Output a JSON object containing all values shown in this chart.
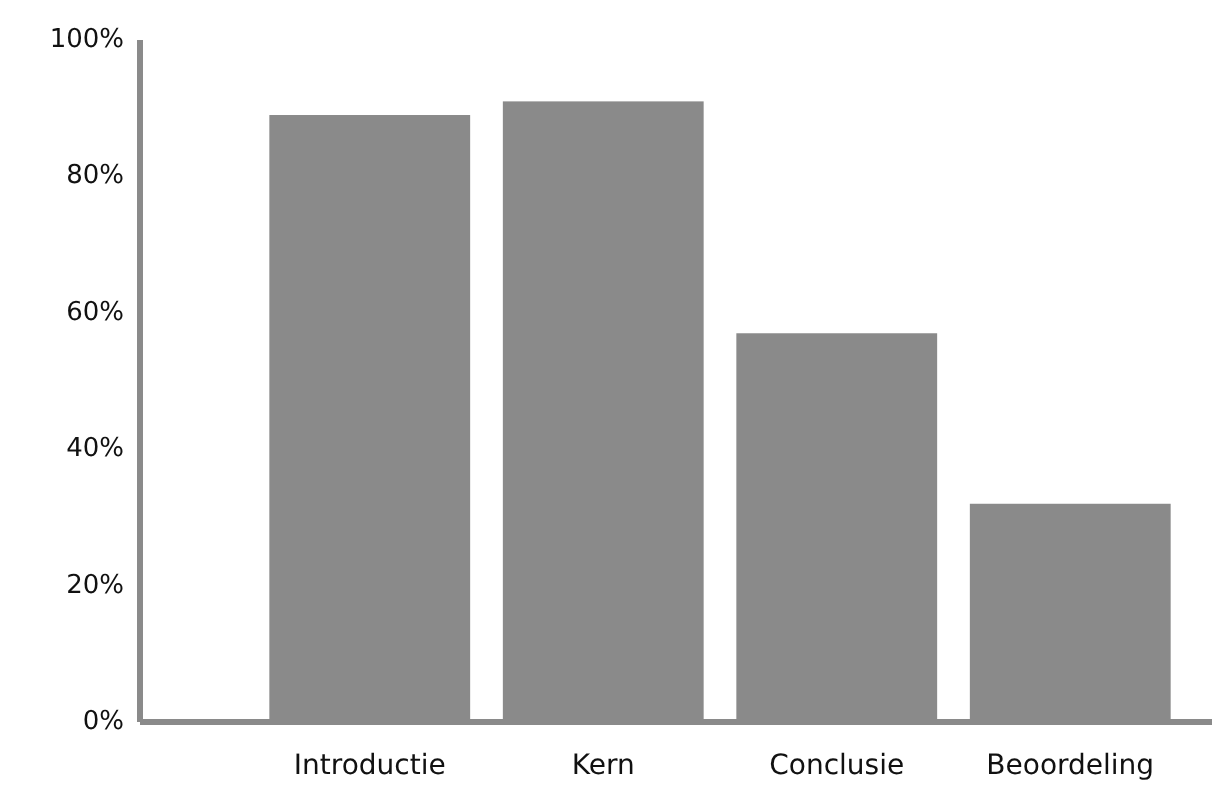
{
  "chart_data": {
    "type": "bar",
    "categories": [
      "Introductie",
      "Kern",
      "Conclusie",
      "Beoordeling"
    ],
    "values": [
      89,
      91,
      57,
      32
    ],
    "color": "#8a8a8a",
    "ylim": [
      0,
      100
    ],
    "yticks": [
      {
        "value": 0,
        "label": "0%"
      },
      {
        "value": 20,
        "label": "20%"
      },
      {
        "value": 40,
        "label": "40%"
      },
      {
        "value": 60,
        "label": "60%"
      },
      {
        "value": 80,
        "label": "80%"
      },
      {
        "value": 100,
        "label": "100%"
      }
    ],
    "grid": false
  }
}
